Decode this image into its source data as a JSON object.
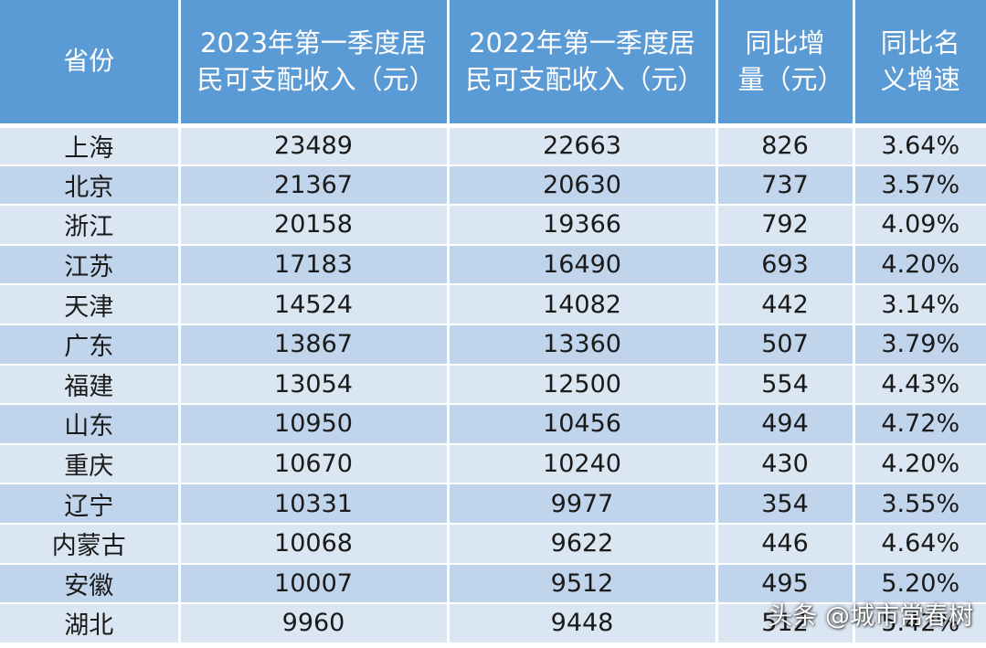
{
  "headers": [
    "省份",
    "2023年第一季度居民可支配收入（元）",
    "2022年第一季度居民可支配收入（元）",
    "同比增量（元）",
    "同比名义增速"
  ],
  "rows": [
    [
      "上海",
      "23489",
      "22663",
      "826",
      "3.64%"
    ],
    [
      "北京",
      "21367",
      "20630",
      "737",
      "3.57%"
    ],
    [
      "浙江",
      "20158",
      "19366",
      "792",
      "4.09%"
    ],
    [
      "江苏",
      "17183",
      "16490",
      "693",
      "4.20%"
    ],
    [
      "天津",
      "14524",
      "14082",
      "442",
      "3.14%"
    ],
    [
      "广东",
      "13867",
      "13360",
      "507",
      "3.79%"
    ],
    [
      "福建",
      "13054",
      "12500",
      "554",
      "4.43%"
    ],
    [
      "山东",
      "10950",
      "10456",
      "494",
      "4.72%"
    ],
    [
      "重庆",
      "10670",
      "10240",
      "430",
      "4.20%"
    ],
    [
      "辽宁",
      "10331",
      "9977",
      "354",
      "3.55%"
    ],
    [
      "内蒙古",
      "10068",
      "9622",
      "446",
      "4.64%"
    ],
    [
      "安徽",
      "10007",
      "9512",
      "495",
      "5.20%"
    ],
    [
      "湖北",
      "9960",
      "9448",
      "512",
      "5.42%"
    ]
  ],
  "watermark": "头条 @城市常春树"
}
